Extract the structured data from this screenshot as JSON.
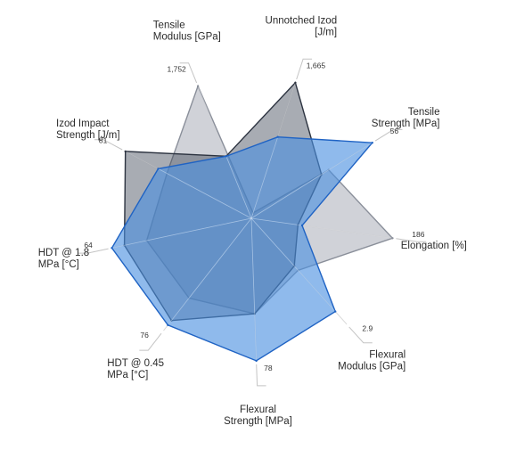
{
  "chart_data": {
    "type": "radar",
    "axes": [
      {
        "label": [
          "Unnotched Izod",
          "[J/m]"
        ],
        "max_label": "1,665"
      },
      {
        "label": [
          "Tensile",
          "Strength [MPa]"
        ],
        "max_label": "56"
      },
      {
        "label": [
          "Elongation [%]"
        ],
        "max_label": "186"
      },
      {
        "label": [
          "Flexural",
          "Modulus [GPa]"
        ],
        "max_label": "2.9"
      },
      {
        "label": [
          "Flexural",
          "Strength [MPa]"
        ],
        "max_label": "78"
      },
      {
        "label": [
          "HDT @ 0.45",
          "MPa [°C]"
        ],
        "max_label": "76"
      },
      {
        "label": [
          "HDT @ 1.8",
          "MPa [°C]"
        ],
        "max_label": "64"
      },
      {
        "label": [
          "Izod Impact",
          "Strength [J/m]"
        ],
        "max_label": "81"
      },
      {
        "label": [
          "Tensile",
          "Modulus [GPa]"
        ],
        "max_label": "1,752"
      }
    ],
    "series": [
      {
        "fill": "#a9adb8",
        "stroke": "#8a8f9a",
        "fill_opacity": 0.55,
        "values": [
          0.04,
          0.64,
          1.0,
          0.49,
          0.67,
          0.71,
          0.75,
          0.67,
          1.0
        ]
      },
      {
        "fill": "#3f4756",
        "stroke": "#2c3340",
        "fill_opacity": 0.45,
        "values": [
          1.0,
          0.58,
          0.33,
          0.45,
          0.67,
          0.91,
          0.91,
          1.0,
          0.47
        ]
      },
      {
        "fill": "#4a8fe0",
        "stroke": "#1f63c4",
        "fill_opacity": 0.62,
        "values": [
          0.6,
          1.0,
          0.36,
          0.88,
          1.0,
          0.95,
          1.0,
          0.74,
          0.47
        ]
      }
    ]
  }
}
